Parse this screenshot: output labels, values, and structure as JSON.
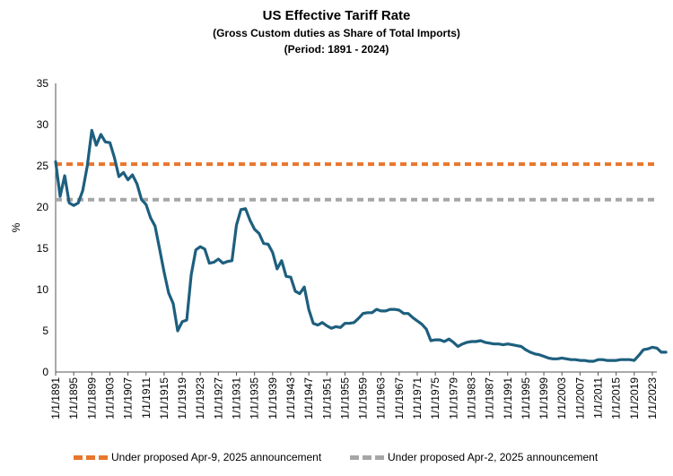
{
  "chart_data": {
    "type": "line",
    "title": "US Effective Tariff Rate",
    "subtitle": "(Gross Custom duties as Share of Total Imports)",
    "period": "(Period: 1891 - 2024)",
    "xlabel": "",
    "ylabel": "%",
    "ylim": [
      0,
      35
    ],
    "yticks": [
      0,
      5,
      10,
      15,
      20,
      25,
      30,
      35
    ],
    "x_start": 1891,
    "x_end": 2024,
    "x_tick_labels": [
      "1/1/1891",
      "1/1/1895",
      "1/1/1899",
      "1/1/1903",
      "1/1/1907",
      "1/1/1911",
      "1/1/1915",
      "1/1/1919",
      "1/1/1923",
      "1/1/1927",
      "1/1/1931",
      "1/1/1935",
      "1/1/1939",
      "1/1/1943",
      "1/1/1947",
      "1/1/1951",
      "1/1/1955",
      "1/1/1959",
      "1/1/1963",
      "1/1/1967",
      "1/1/1971",
      "1/1/1975",
      "1/1/1979",
      "1/1/1983",
      "1/1/1987",
      "1/1/1991",
      "1/1/1995",
      "1/1/1999",
      "1/1/2003",
      "1/1/2007",
      "1/1/2011",
      "1/1/2015",
      "1/1/2019",
      "1/1/2023"
    ],
    "grid": false,
    "legend_position": "bottom",
    "series": [
      {
        "name": "US Effective Tariff Rate",
        "color": "#1d5f7e",
        "values": [
          25.5,
          21.3,
          23.8,
          20.5,
          20.2,
          20.5,
          22.0,
          25.0,
          29.3,
          27.5,
          28.8,
          27.9,
          27.8,
          26.0,
          23.7,
          24.2,
          23.3,
          23.9,
          22.8,
          20.9,
          20.3,
          18.7,
          17.7,
          14.9,
          12.1,
          9.6,
          8.3,
          5.0,
          6.1,
          6.3,
          11.8,
          14.8,
          15.2,
          14.9,
          13.2,
          13.3,
          13.7,
          13.2,
          13.4,
          13.5,
          17.8,
          19.7,
          19.8,
          18.4,
          17.3,
          16.8,
          15.6,
          15.5,
          14.5,
          12.5,
          13.5,
          11.6,
          11.5,
          9.8,
          9.5,
          10.3,
          7.6,
          5.9,
          5.7,
          6.0,
          5.6,
          5.3,
          5.5,
          5.4,
          5.9,
          5.9,
          6.0,
          6.5,
          7.1,
          7.2,
          7.2,
          7.6,
          7.4,
          7.4,
          7.6,
          7.6,
          7.5,
          7.1,
          7.1,
          6.6,
          6.2,
          5.8,
          5.2,
          3.8,
          3.9,
          3.9,
          3.7,
          4.0,
          3.6,
          3.1,
          3.4,
          3.6,
          3.7,
          3.7,
          3.8,
          3.6,
          3.5,
          3.4,
          3.4,
          3.3,
          3.4,
          3.3,
          3.2,
          3.1,
          2.7,
          2.4,
          2.2,
          2.1,
          1.9,
          1.7,
          1.6,
          1.6,
          1.7,
          1.6,
          1.5,
          1.5,
          1.4,
          1.4,
          1.3,
          1.3,
          1.5,
          1.5,
          1.4,
          1.4,
          1.4,
          1.5,
          1.5,
          1.5,
          1.4,
          2.0,
          2.7,
          2.8,
          3.0,
          2.9,
          2.4,
          2.4
        ]
      },
      {
        "name": "Under proposed Apr-9, 2025 announcement",
        "color": "#e8762d",
        "constant": 25.2
      },
      {
        "name": "Under proposed Apr-2, 2025 announcement",
        "color": "#a6a6a6",
        "constant": 20.9
      }
    ]
  }
}
